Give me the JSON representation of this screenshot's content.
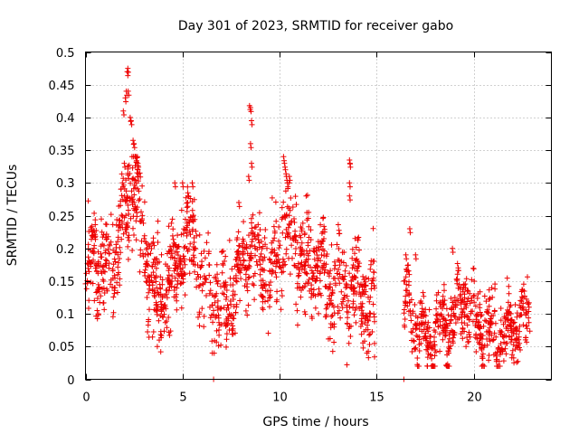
{
  "chart_data": {
    "type": "scatter",
    "title": "Day 301 of 2023, SRMTID for receiver gabo",
    "xlabel": "GPS time / hours",
    "ylabel": "SRMTID / TECUs",
    "xlim": [
      0,
      24
    ],
    "ylim": [
      0,
      0.5
    ],
    "x_ticks": [
      0,
      5,
      10,
      15,
      20
    ],
    "x_tick_labels": [
      "0",
      "5",
      "10",
      "15",
      "20"
    ],
    "y_ticks": [
      0,
      0.05,
      0.1,
      0.15,
      0.2,
      0.25,
      0.3,
      0.35,
      0.4,
      0.45,
      0.5
    ],
    "y_tick_labels": [
      "0",
      "0.05",
      "0.1",
      "0.15",
      "0.2",
      "0.25",
      "0.3",
      "0.35",
      "0.4",
      "0.45",
      "0.5"
    ],
    "grid": true,
    "marker": "plus",
    "marker_color": "#ee0000",
    "series": [
      {
        "name": "SRMTID",
        "segments": [
          {
            "x_start": 0.0,
            "x_end": 14.9,
            "center": [
              [
                0,
                0.15
              ],
              [
                0.5,
                0.19
              ],
              [
                1.0,
                0.16
              ],
              [
                1.5,
                0.2
              ],
              [
                2.0,
                0.24
              ],
              [
                2.3,
                0.28
              ],
              [
                2.5,
                0.3
              ],
              [
                3.0,
                0.2
              ],
              [
                3.5,
                0.14
              ],
              [
                4.0,
                0.13
              ],
              [
                4.5,
                0.16
              ],
              [
                5.0,
                0.2
              ],
              [
                5.5,
                0.22
              ],
              [
                6.0,
                0.15
              ],
              [
                6.5,
                0.13
              ],
              [
                7.0,
                0.1
              ],
              [
                7.5,
                0.12
              ],
              [
                8.0,
                0.18
              ],
              [
                8.5,
                0.2
              ],
              [
                9.0,
                0.17
              ],
              [
                9.5,
                0.16
              ],
              [
                10.0,
                0.2
              ],
              [
                10.5,
                0.22
              ],
              [
                11.0,
                0.18
              ],
              [
                11.5,
                0.17
              ],
              [
                12.0,
                0.18
              ],
              [
                12.5,
                0.14
              ],
              [
                13.0,
                0.15
              ],
              [
                13.5,
                0.14
              ],
              [
                14.0,
                0.15
              ],
              [
                14.5,
                0.12
              ],
              [
                14.9,
                0.1
              ]
            ],
            "spread": 0.05
          },
          {
            "x_start": 16.4,
            "x_end": 22.9,
            "center": [
              [
                16.4,
                0.13
              ],
              [
                16.8,
                0.1
              ],
              [
                17.2,
                0.07
              ],
              [
                17.6,
                0.06
              ],
              [
                18.0,
                0.07
              ],
              [
                18.5,
                0.08
              ],
              [
                19.0,
                0.1
              ],
              [
                19.5,
                0.12
              ],
              [
                20.0,
                0.1
              ],
              [
                20.5,
                0.08
              ],
              [
                21.0,
                0.07
              ],
              [
                21.5,
                0.06
              ],
              [
                22.0,
                0.08
              ],
              [
                22.5,
                0.09
              ],
              [
                22.9,
                0.1
              ]
            ],
            "spread": 0.035
          }
        ],
        "peaks": [
          {
            "x": 1.9,
            "y": 0.3
          },
          {
            "x": 2.0,
            "y": 0.33
          },
          {
            "x": 1.95,
            "y": 0.41
          },
          {
            "x": 2.05,
            "y": 0.43
          },
          {
            "x": 2.1,
            "y": 0.44
          },
          {
            "x": 2.15,
            "y": 0.47
          },
          {
            "x": 2.18,
            "y": 0.475
          },
          {
            "x": 2.2,
            "y": 0.44
          },
          {
            "x": 2.3,
            "y": 0.4
          },
          {
            "x": 2.35,
            "y": 0.395
          },
          {
            "x": 2.45,
            "y": 0.365
          },
          {
            "x": 2.5,
            "y": 0.36
          },
          {
            "x": 2.7,
            "y": 0.33
          },
          {
            "x": 2.8,
            "y": 0.315
          },
          {
            "x": 2.6,
            "y": 0.34
          },
          {
            "x": 2.7,
            "y": 0.32
          },
          {
            "x": 8.45,
            "y": 0.418
          },
          {
            "x": 8.5,
            "y": 0.415
          },
          {
            "x": 8.55,
            "y": 0.395
          },
          {
            "x": 8.5,
            "y": 0.36
          },
          {
            "x": 8.55,
            "y": 0.33
          },
          {
            "x": 8.4,
            "y": 0.31
          },
          {
            "x": 10.2,
            "y": 0.34
          },
          {
            "x": 10.25,
            "y": 0.33
          },
          {
            "x": 10.3,
            "y": 0.32
          },
          {
            "x": 10.4,
            "y": 0.3
          },
          {
            "x": 10.35,
            "y": 0.31
          },
          {
            "x": 10.5,
            "y": 0.31
          },
          {
            "x": 13.6,
            "y": 0.335
          },
          {
            "x": 13.62,
            "y": 0.33
          },
          {
            "x": 13.6,
            "y": 0.3
          },
          {
            "x": 13.6,
            "y": 0.28
          },
          {
            "x": 5.5,
            "y": 0.3
          },
          {
            "x": 5.0,
            "y": 0.3
          },
          {
            "x": 4.6,
            "y": 0.3
          },
          {
            "x": 7.9,
            "y": 0.27
          },
          {
            "x": 18.9,
            "y": 0.2
          },
          {
            "x": 16.7,
            "y": 0.23
          },
          {
            "x": 16.5,
            "y": 0.19
          },
          {
            "x": 17.0,
            "y": 0.19
          }
        ],
        "lows": [
          {
            "x": 6.6,
            "y": 0.0
          },
          {
            "x": 16.4,
            "y": 0.0
          },
          {
            "x": 3.7,
            "y": 0.05
          },
          {
            "x": 3.8,
            "y": 0.06
          },
          {
            "x": 14.5,
            "y": 0.04
          },
          {
            "x": 18.0,
            "y": 0.02
          },
          {
            "x": 21.2,
            "y": 0.03
          }
        ]
      }
    ]
  }
}
